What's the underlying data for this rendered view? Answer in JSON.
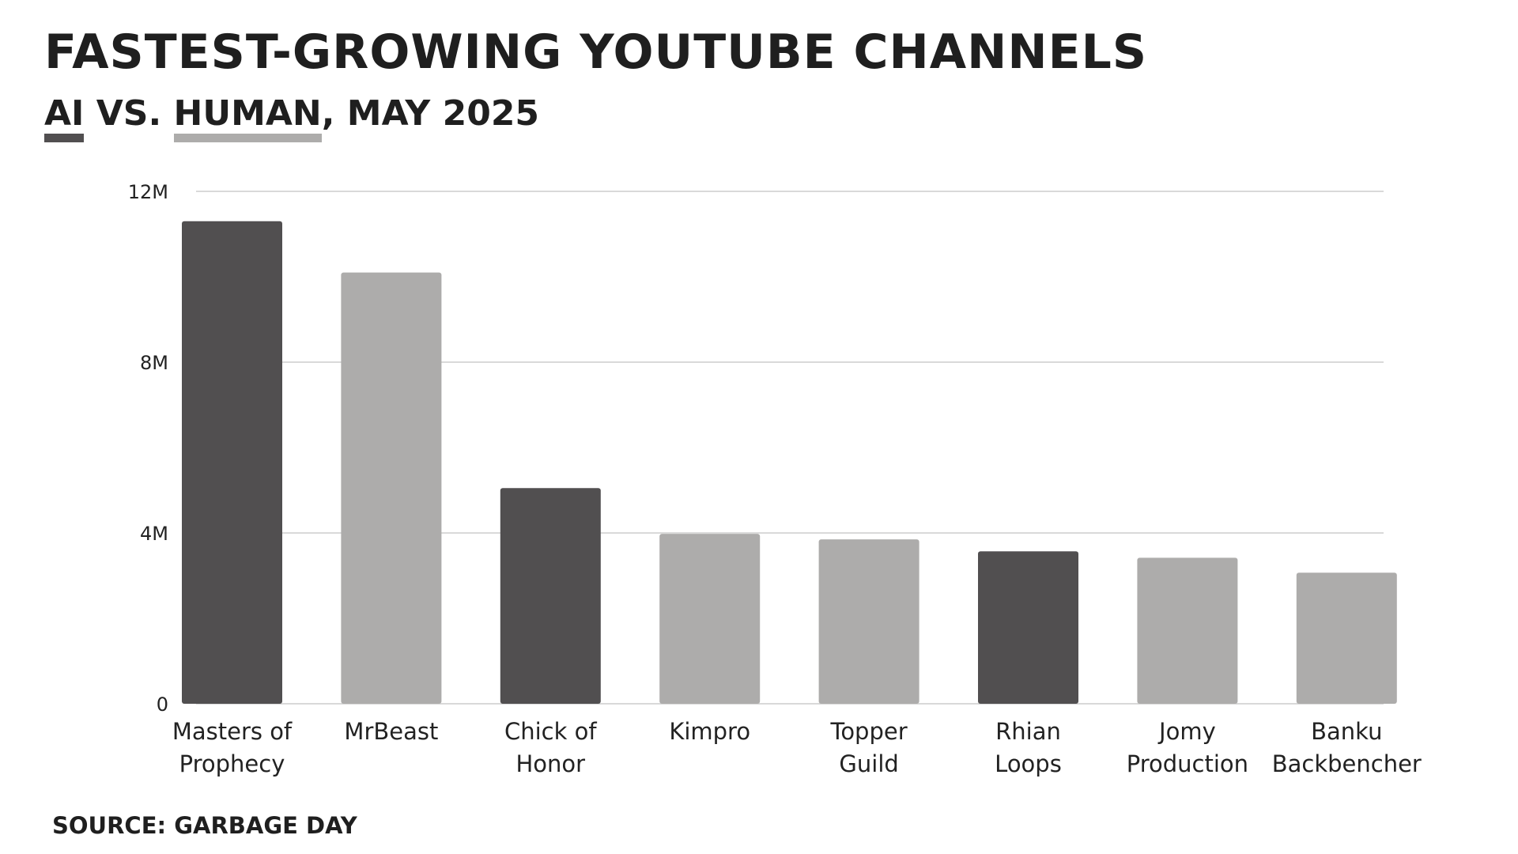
{
  "chart_data": {
    "type": "bar",
    "title": "FASTEST-GROWING YOUTUBE CHANNELS",
    "subtitle": {
      "ai_label": "AI",
      "vs_text": " VS. ",
      "human_label": "HUMAN",
      "rest_text": ", MAY 2025"
    },
    "categories": [
      [
        "Masters of",
        "Prophecy"
      ],
      [
        "MrBeast"
      ],
      [
        "Chick of",
        "Honor"
      ],
      [
        "Kimpro"
      ],
      [
        "Topper",
        "Guild"
      ],
      [
        "Rhian",
        "Loops"
      ],
      [
        "Jomy",
        "Production"
      ],
      [
        "Banku",
        "Backbencher"
      ]
    ],
    "values": [
      11.3,
      10.1,
      5.05,
      3.98,
      3.85,
      3.57,
      3.42,
      3.07
    ],
    "groups": [
      "AI",
      "HUMAN",
      "AI",
      "HUMAN",
      "HUMAN",
      "AI",
      "HUMAN",
      "HUMAN"
    ],
    "group_colors": {
      "AI": "#514f50",
      "HUMAN": "#adacab"
    },
    "ylim": [
      0,
      12
    ],
    "yticks": [
      {
        "value": 0,
        "label": "0"
      },
      {
        "value": 4,
        "label": "4M"
      },
      {
        "value": 8,
        "label": "8M"
      },
      {
        "value": 12,
        "label": "12M"
      }
    ],
    "xlabel": "",
    "ylabel": "",
    "grid": true,
    "gridColor": "#d9d9d9",
    "legend": "under-subtitle-words",
    "source": "SOURCE: GARBAGE DAY"
  }
}
